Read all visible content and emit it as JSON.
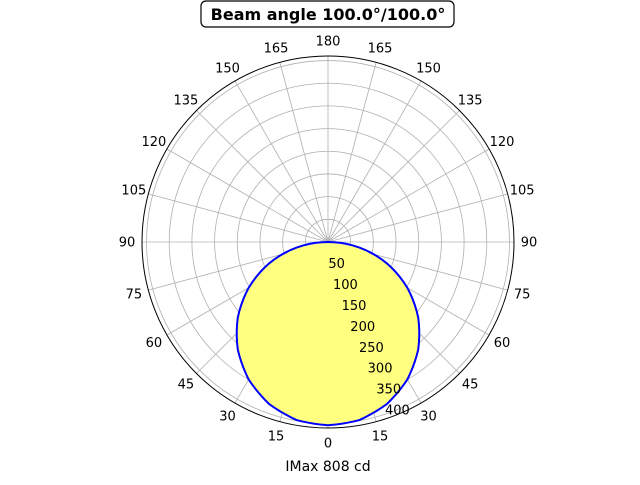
{
  "chart_data": {
    "type": "polar",
    "title": "Beam angle 100.0°/100.0°",
    "xlabel": "IMax 808 cd",
    "r_max": 410,
    "r_ticks": [
      50,
      100,
      150,
      200,
      250,
      300,
      350,
      400
    ],
    "angle_tick_labels": [
      "0",
      "15",
      "30",
      "45",
      "60",
      "75",
      "90",
      "105",
      "120",
      "135",
      "150",
      "165",
      "180",
      "165",
      "150",
      "135",
      "120",
      "105",
      "90",
      "75",
      "60",
      "45",
      "30",
      "15"
    ],
    "angle_range_deg": [
      -180,
      180
    ],
    "zero_direction": "bottom",
    "grid": true,
    "series": [
      {
        "angles_deg": [
          -90,
          -80,
          -70,
          -60,
          -50,
          -40,
          -30,
          -20,
          -10,
          0,
          10,
          20,
          30,
          40,
          50,
          60,
          70,
          80,
          90
        ],
        "values": [
          0,
          70.2,
          138.2,
          202,
          259.7,
          309.4,
          349.9,
          380,
          398.6,
          404,
          398.6,
          380,
          349.9,
          309.4,
          259.7,
          202,
          138.2,
          70.2,
          0
        ],
        "line_color": "#0000ff",
        "fill_color": "#ffff80"
      }
    ]
  }
}
